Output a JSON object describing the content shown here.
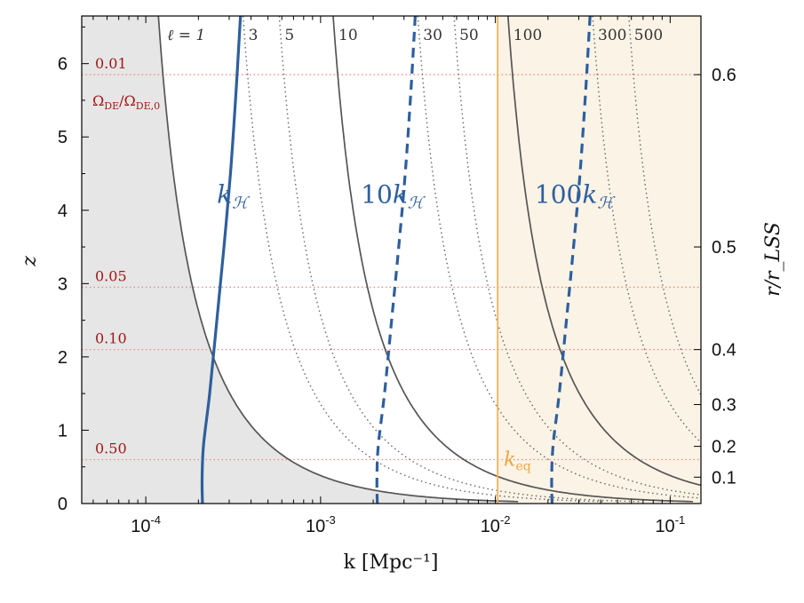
{
  "chart_data": {
    "type": "line",
    "xlabel": "k [Mpc⁻¹]",
    "ylabel": "z",
    "ylabel_right": "r/r_LSS",
    "x_scale": "log",
    "xlim": [
      4.3e-05,
      0.15
    ],
    "ylim": [
      0,
      6.65
    ],
    "x_tick_labels": [
      {
        "value": 0.0001,
        "base": "10",
        "exp": "-4"
      },
      {
        "value": 0.001,
        "base": "10",
        "exp": "-3"
      },
      {
        "value": 0.01,
        "base": "10",
        "exp": "-2"
      },
      {
        "value": 0.1,
        "base": "10",
        "exp": "-1"
      }
    ],
    "y_ticks": [
      0,
      1,
      2,
      3,
      4,
      5,
      6
    ],
    "y_tick_labels": [
      "0",
      "1",
      "2",
      "3",
      "4",
      "5",
      "6"
    ],
    "right_ticks": [
      {
        "z": 0.36,
        "label": "0.1"
      },
      {
        "z": 0.78,
        "label": "0.2"
      },
      {
        "z": 1.35,
        "label": "0.3"
      },
      {
        "z": 2.1,
        "label": "0.4"
      },
      {
        "z": 3.5,
        "label": "0.5"
      },
      {
        "z": 5.85,
        "label": "0.6"
      }
    ],
    "excluded_region": {
      "description": "k below the l=1 multipole curve"
    },
    "k_eq": {
      "k": 0.0103,
      "label": "k",
      "sub": "eq",
      "color": "#f2a43c"
    },
    "dark_energy_levels": {
      "title": "Ω",
      "title_sub": "DE",
      "title_mid": "/Ω",
      "title_sub2": "DE,0",
      "lines": [
        {
          "z": 5.85,
          "label": "0.01"
        },
        {
          "z": 2.95,
          "label": "0.05"
        },
        {
          "z": 2.1,
          "label": "0.10"
        },
        {
          "z": 0.6,
          "label": "0.50"
        }
      ]
    },
    "multipoles": [
      {
        "ell": 1,
        "label": "ℓ = 1",
        "style": "solid",
        "k_top": 0.000118
      },
      {
        "ell": 3,
        "label": "3",
        "style": "dotted",
        "k_top": 0.00036
      },
      {
        "ell": 5,
        "label": "5",
        "style": "dotted",
        "k_top": 0.00058
      },
      {
        "ell": 10,
        "label": "10",
        "style": "solid",
        "k_top": 0.00118
      },
      {
        "ell": 30,
        "label": "30",
        "style": "dotted",
        "k_top": 0.0036
      },
      {
        "ell": 50,
        "label": "50",
        "style": "dotted",
        "k_top": 0.0058
      },
      {
        "ell": 100,
        "label": "100",
        "style": "solid",
        "k_top": 0.0118
      },
      {
        "ell": 300,
        "label": "300",
        "style": "dotted",
        "k_top": 0.036
      },
      {
        "ell": 500,
        "label": "500",
        "style": "dotted",
        "k_top": 0.058
      }
    ],
    "horizon_series": [
      {
        "name": "k_H",
        "label_prefix": "",
        "label_sub": "ℋ",
        "multiplier": 1,
        "style": "solid",
        "label_at": {
          "k": 0.000255,
          "z": 4.1
        },
        "k": [
          0.000211,
          0.00021,
          0.000214,
          0.000232,
          0.000255,
          0.00028,
          0.000305,
          0.000328,
          0.000348
        ],
        "z": [
          0,
          0.35,
          0.8,
          1.5,
          2.5,
          3.5,
          4.5,
          5.6,
          6.65
        ]
      },
      {
        "name": "10k_H",
        "label_prefix": "10",
        "label_sub": "ℋ",
        "multiplier": 10,
        "style": "dashed",
        "label_at": {
          "k": 0.0017,
          "z": 4.1
        },
        "k": [
          0.00211,
          0.0021,
          0.00214,
          0.00232,
          0.00255,
          0.0028,
          0.00305,
          0.00328,
          0.00348
        ],
        "z": [
          0,
          0.35,
          0.8,
          1.5,
          2.5,
          3.5,
          4.5,
          5.6,
          6.65
        ]
      },
      {
        "name": "100k_H",
        "label_prefix": "100",
        "label_sub": "ℋ",
        "multiplier": 100,
        "style": "dashed",
        "label_at": {
          "k": 0.0168,
          "z": 4.1
        },
        "k": [
          0.0211,
          0.021,
          0.0214,
          0.0232,
          0.0255,
          0.028,
          0.0305,
          0.0328,
          0.0348
        ],
        "z": [
          0,
          0.35,
          0.8,
          1.5,
          2.5,
          3.5,
          4.5,
          5.6,
          6.65
        ]
      }
    ]
  }
}
